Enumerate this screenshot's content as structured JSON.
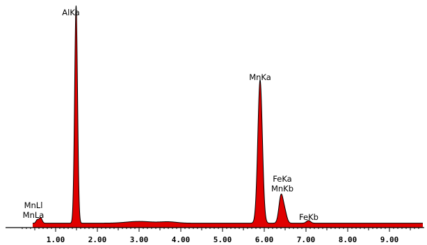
{
  "chart_data": {
    "type": "area",
    "title": "",
    "xlabel": "",
    "ylabel": "",
    "xlim": [
      0.0,
      9.8
    ],
    "ylim": [
      0,
      1.0
    ],
    "grid": false,
    "colors": {
      "fill": "#e00000",
      "outline": "#000000",
      "axis": "#000000"
    },
    "x_ticks": [
      1.0,
      2.0,
      3.0,
      4.0,
      5.0,
      6.0,
      7.0,
      8.0,
      9.0
    ],
    "x_tick_labels": [
      "1.00",
      "2.00",
      "3.00",
      "4.00",
      "5.00",
      "6.00",
      "7.00",
      "8.00",
      "9.00"
    ],
    "baseline": 0.02,
    "peaks": [
      {
        "center": 0.56,
        "height": 0.015,
        "width": 0.03
      },
      {
        "center": 0.64,
        "height": 0.025,
        "width": 0.035
      },
      {
        "center": 1.49,
        "height": 0.98,
        "width": 0.035
      },
      {
        "center": 3.0,
        "height": 0.008,
        "width": 0.3
      },
      {
        "center": 3.7,
        "height": 0.006,
        "width": 0.2
      },
      {
        "center": 5.9,
        "height": 0.645,
        "width": 0.055
      },
      {
        "center": 6.4,
        "height": 0.12,
        "width": 0.05
      },
      {
        "center": 6.49,
        "height": 0.05,
        "width": 0.05
      },
      {
        "center": 7.06,
        "height": 0.012,
        "width": 0.05
      }
    ],
    "annotations": [
      {
        "key": "alka",
        "lines": [
          "AlKa"
        ],
        "x": 1.49
      },
      {
        "key": "mnll",
        "lines": [
          "MnLl",
          "MnLa"
        ],
        "x": 0.6
      },
      {
        "key": "mnka",
        "lines": [
          "MnKa"
        ],
        "x": 5.9
      },
      {
        "key": "feka",
        "lines": [
          "FeKa",
          "MnKb"
        ],
        "x": 6.43
      },
      {
        "key": "fekb",
        "lines": [
          "FeKb"
        ],
        "x": 7.06
      }
    ]
  }
}
